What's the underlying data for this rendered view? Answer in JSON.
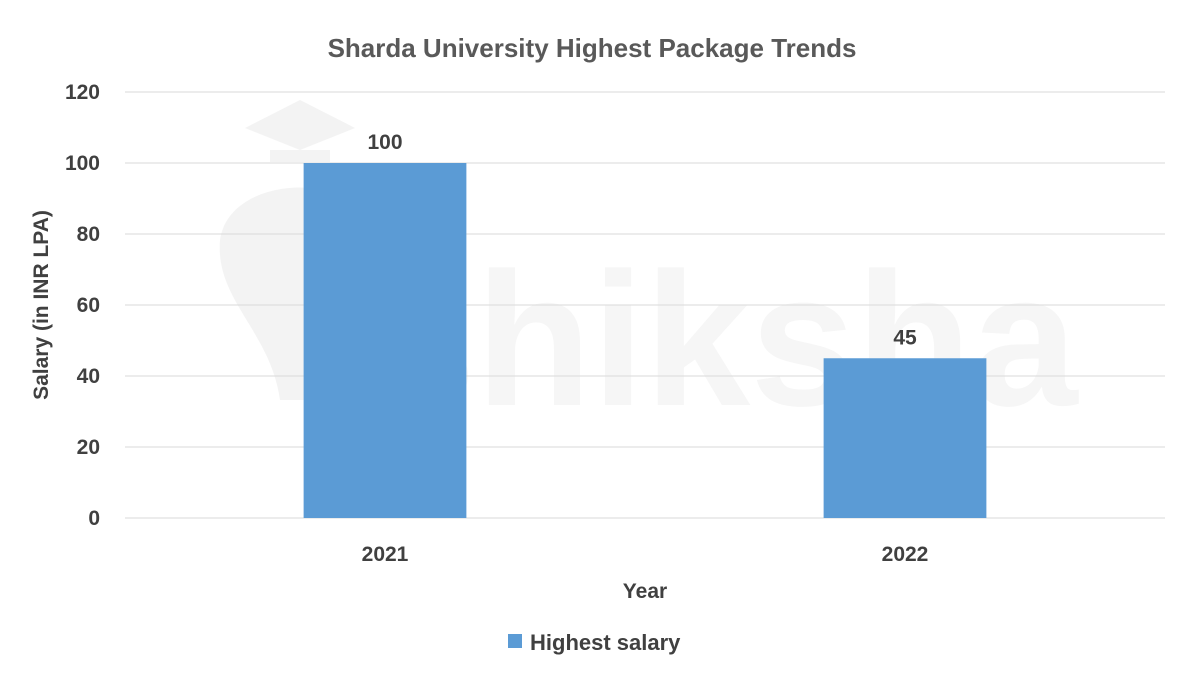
{
  "chart_data": {
    "type": "bar",
    "title": "Sharda University Highest Package Trends",
    "xlabel": "Year",
    "ylabel": "Salary (in INR LPA)",
    "categories": [
      "2021",
      "2022"
    ],
    "series": [
      {
        "name": "Highest salary",
        "values": [
          100,
          45
        ],
        "color": "#5b9bd5"
      }
    ],
    "ylim": [
      0,
      120
    ],
    "yticks": [
      0,
      20,
      40,
      60,
      80,
      100,
      120
    ],
    "grid": true,
    "legend_position": "bottom",
    "data_labels": [
      "100",
      "45"
    ]
  },
  "watermark": {
    "text": "shiksha",
    "type": "logo"
  }
}
